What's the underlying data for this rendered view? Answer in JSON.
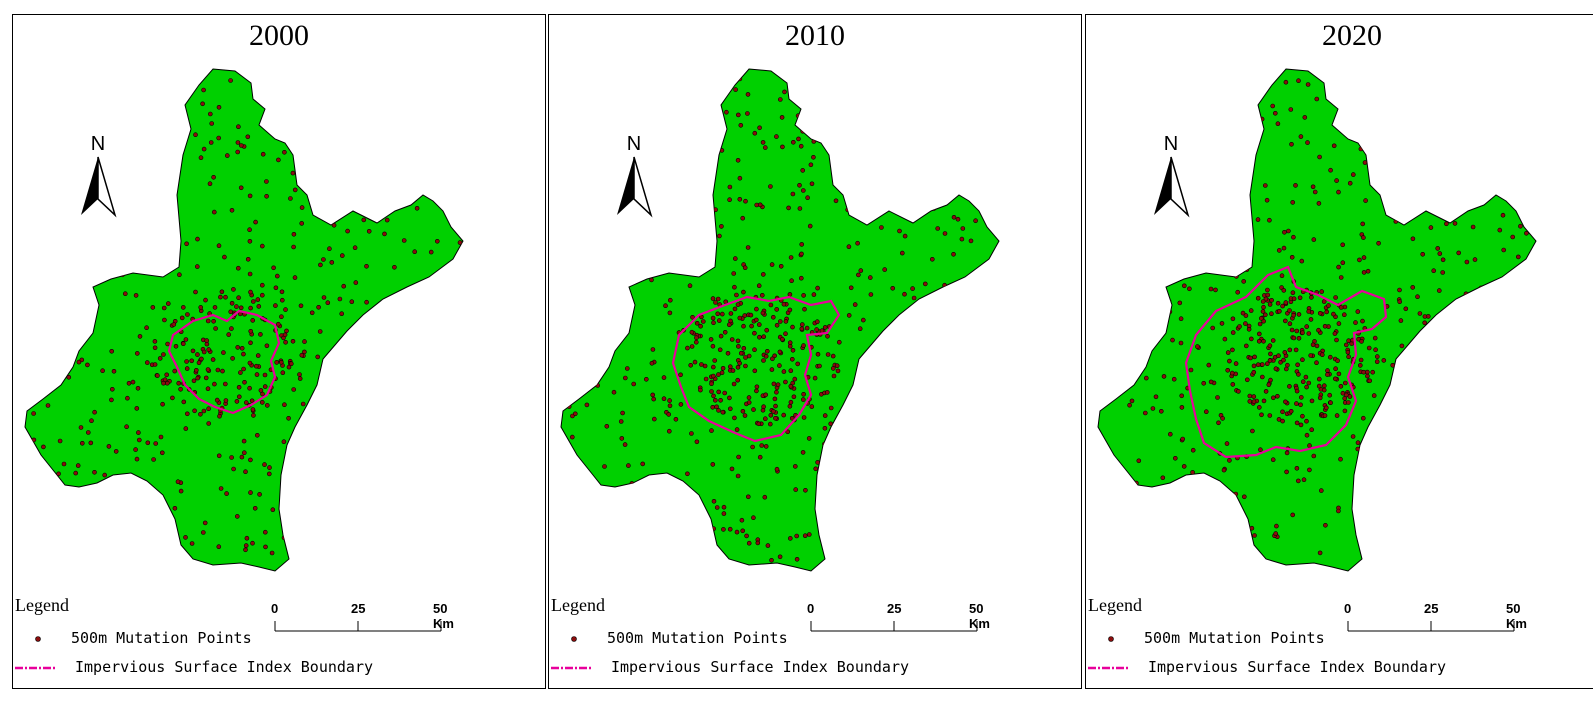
{
  "panels": [
    {
      "year": "2000"
    },
    {
      "year": "2010"
    },
    {
      "year": "2020"
    }
  ],
  "north_label": "N",
  "legend": {
    "title": "Legend",
    "points_label": "500m Mutation Points",
    "boundary_label": "Impervious Surface Index Boundary"
  },
  "scale": {
    "ticks": [
      "0",
      "25",
      "50 Km"
    ]
  },
  "colors": {
    "land_fill": "#00d000",
    "outline": "#000000",
    "point_fill": "#8b0d0d",
    "boundary": "#e8009b"
  }
}
